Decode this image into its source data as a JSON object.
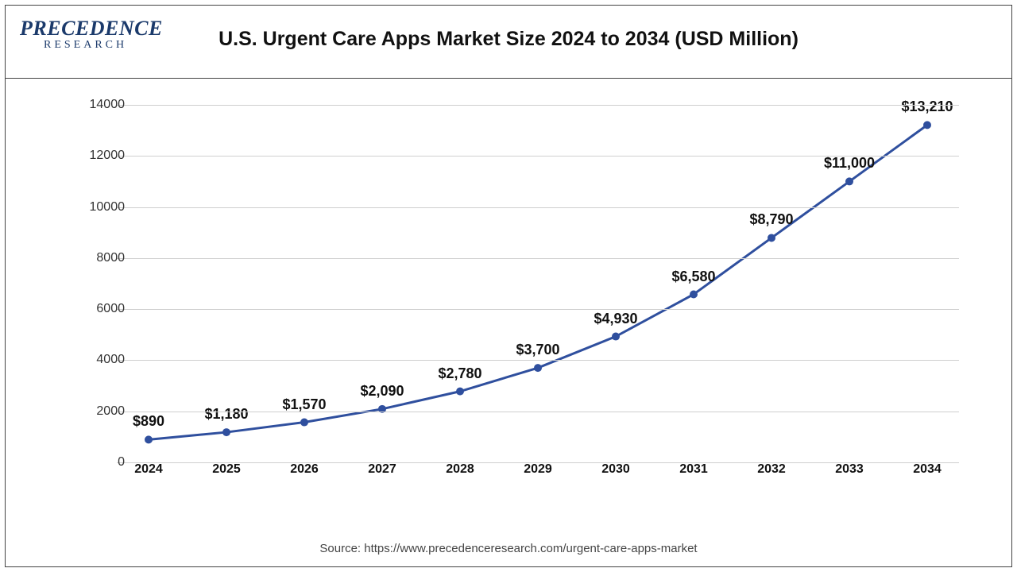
{
  "logo": {
    "main": "PRECEDENCE",
    "sub": "RESEARCH"
  },
  "title": "U.S. Urgent Care Apps Market Size 2024 to 2034 (USD Million)",
  "source": "Source: https://www.precedenceresearch.com/urgent-care-apps-market",
  "chart": {
    "type": "line",
    "years": [
      "2024",
      "2025",
      "2026",
      "2027",
      "2028",
      "2029",
      "2030",
      "2031",
      "2032",
      "2033",
      "2034"
    ],
    "values": [
      890,
      1180,
      1570,
      2090,
      2780,
      3700,
      4930,
      6580,
      8790,
      11000,
      13210
    ],
    "data_labels": [
      "$890",
      "$1,180",
      "$1,570",
      "$2,090",
      "$2,780",
      "$3,700",
      "$4,930",
      "$6,580",
      "$8,790",
      "$11,000",
      "$13,210"
    ],
    "ylim": [
      0,
      14000
    ],
    "ytick_step": 2000,
    "yticks": [
      0,
      2000,
      4000,
      6000,
      8000,
      10000,
      12000,
      14000
    ],
    "line_color": "#2f4f9e",
    "marker_color": "#2f4f9e",
    "line_width": 3,
    "marker_radius": 5,
    "grid_color": "#cfcfcf",
    "background_color": "#ffffff",
    "tick_fontsize": 16,
    "data_label_fontsize": 18,
    "title_fontsize": 25
  }
}
